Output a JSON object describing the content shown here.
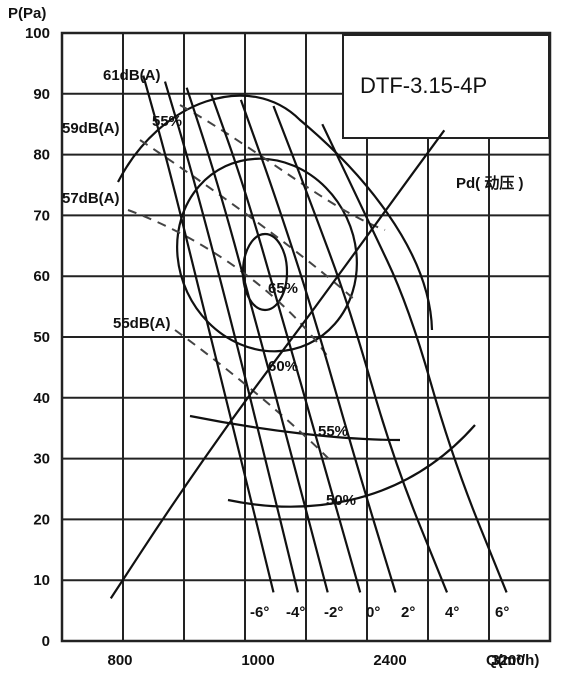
{
  "chart_data": {
    "type": "line",
    "model": "DTF-3.15-4P",
    "ylabel": "P(Pa)",
    "xlabel": "Q(m³/h)",
    "ylim": [
      0,
      100
    ],
    "yticks": [
      "0",
      "10",
      "20",
      "30",
      "40",
      "50",
      "60",
      "70",
      "80",
      "90",
      "100"
    ],
    "xticks": [
      "800",
      "1000",
      "2400",
      "3200"
    ],
    "grid": true,
    "noise_labels": [
      "61dB(A)",
      "59dB(A)",
      "57dB(A)",
      "55dB(A)"
    ],
    "efficiency_labels": [
      "55%",
      "65%",
      "60%",
      "55%",
      "50%"
    ],
    "blade_angle_labels": [
      "-6°",
      "-4°",
      "-2°",
      "0°",
      "2°",
      "4°",
      "6°"
    ],
    "pd_label": "Pd( 动压 )",
    "series": [
      {
        "name": "-6°",
        "points": [
          [
            900,
            93
          ],
          [
            1000,
            77
          ],
          [
            1120,
            55
          ],
          [
            1260,
            30
          ],
          [
            1380,
            8
          ]
        ]
      },
      {
        "name": "-4°",
        "points": [
          [
            980,
            92
          ],
          [
            1080,
            77
          ],
          [
            1210,
            55
          ],
          [
            1350,
            30
          ],
          [
            1470,
            8
          ]
        ]
      },
      {
        "name": "-2°",
        "points": [
          [
            1060,
            91
          ],
          [
            1170,
            76
          ],
          [
            1300,
            55
          ],
          [
            1450,
            30
          ],
          [
            1580,
            8
          ]
        ]
      },
      {
        "name": "0°",
        "points": [
          [
            1150,
            90
          ],
          [
            1270,
            75
          ],
          [
            1400,
            55
          ],
          [
            1560,
            30
          ],
          [
            1700,
            8
          ]
        ]
      },
      {
        "name": "2°",
        "points": [
          [
            1260,
            89
          ],
          [
            1380,
            74
          ],
          [
            1520,
            55
          ],
          [
            1680,
            30
          ],
          [
            1830,
            8
          ]
        ]
      },
      {
        "name": "4°",
        "points": [
          [
            1380,
            88
          ],
          [
            1510,
            73
          ],
          [
            1660,
            55
          ],
          [
            1820,
            30
          ],
          [
            2020,
            8
          ]
        ]
      },
      {
        "name": "6°",
        "points": [
          [
            1560,
            85
          ],
          [
            1720,
            70
          ],
          [
            1880,
            55
          ],
          [
            2040,
            30
          ],
          [
            2240,
            8
          ]
        ]
      },
      {
        "name": "Pd( 动压 )",
        "points": [
          [
            780,
            7
          ],
          [
            1000,
            22
          ],
          [
            1250,
            38
          ],
          [
            1520,
            54
          ],
          [
            1780,
            70
          ],
          [
            2010,
            84
          ]
        ]
      }
    ]
  }
}
